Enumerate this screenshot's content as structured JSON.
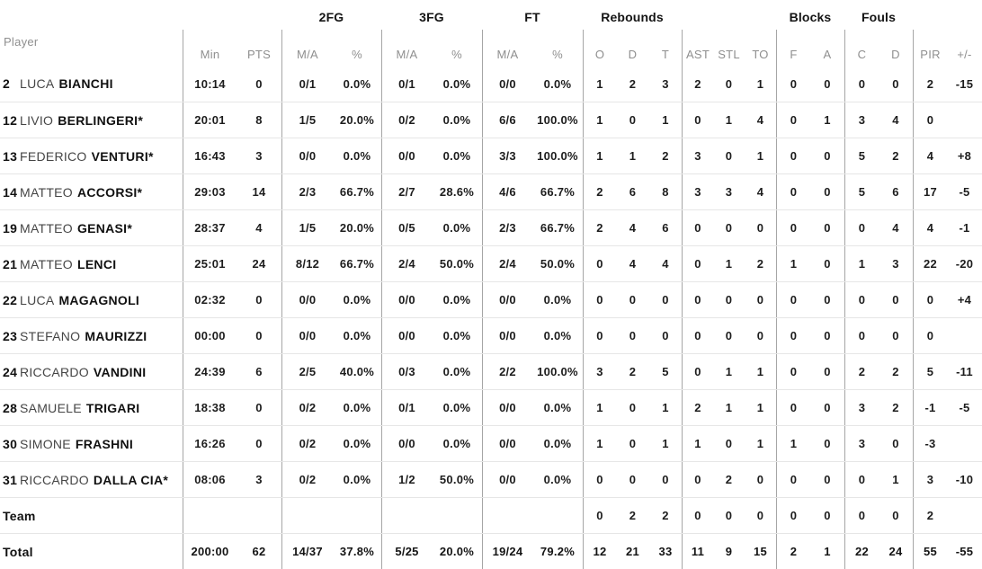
{
  "table": {
    "group_headers": [
      {
        "key": "fg2",
        "label": "2FG"
      },
      {
        "key": "fg3",
        "label": "3FG"
      },
      {
        "key": "ft",
        "label": "FT"
      },
      {
        "key": "rebounds",
        "label": "Rebounds"
      },
      {
        "key": "blocks",
        "label": "Blocks"
      },
      {
        "key": "fouls",
        "label": "Fouls"
      }
    ],
    "column_headers": [
      "Player",
      "Min",
      "PTS",
      "M/A",
      "%",
      "M/A",
      "%",
      "M/A",
      "%",
      "O",
      "D",
      "T",
      "AST",
      "STL",
      "TO",
      "F",
      "A",
      "C",
      "D",
      "PIR",
      "+/-"
    ],
    "rows": [
      {
        "number": "2",
        "first_name": "LUCA",
        "last_name": "BIANCHI",
        "stats": [
          "10:14",
          "0",
          "0/1",
          "0.0%",
          "0/1",
          "0.0%",
          "0/0",
          "0.0%",
          "1",
          "2",
          "3",
          "2",
          "0",
          "1",
          "0",
          "0",
          "0",
          "0",
          "2",
          "-15"
        ]
      },
      {
        "number": "12",
        "first_name": "LIVIO",
        "last_name": "BERLINGERI*",
        "stats": [
          "20:01",
          "8",
          "1/5",
          "20.0%",
          "0/2",
          "0.0%",
          "6/6",
          "100.0%",
          "1",
          "0",
          "1",
          "0",
          "1",
          "4",
          "0",
          "1",
          "3",
          "4",
          "0",
          ""
        ]
      },
      {
        "number": "13",
        "first_name": "FEDERICO",
        "last_name": "VENTURI*",
        "stats": [
          "16:43",
          "3",
          "0/0",
          "0.0%",
          "0/0",
          "0.0%",
          "3/3",
          "100.0%",
          "1",
          "1",
          "2",
          "3",
          "0",
          "1",
          "0",
          "0",
          "5",
          "2",
          "4",
          "+8"
        ]
      },
      {
        "number": "14",
        "first_name": "MATTEO",
        "last_name": "ACCORSI*",
        "stats": [
          "29:03",
          "14",
          "2/3",
          "66.7%",
          "2/7",
          "28.6%",
          "4/6",
          "66.7%",
          "2",
          "6",
          "8",
          "3",
          "3",
          "4",
          "0",
          "0",
          "5",
          "6",
          "17",
          "-5"
        ]
      },
      {
        "number": "19",
        "first_name": "MATTEO",
        "last_name": "GENASI*",
        "stats": [
          "28:37",
          "4",
          "1/5",
          "20.0%",
          "0/5",
          "0.0%",
          "2/3",
          "66.7%",
          "2",
          "4",
          "6",
          "0",
          "0",
          "0",
          "0",
          "0",
          "0",
          "4",
          "4",
          "-1"
        ]
      },
      {
        "number": "21",
        "first_name": "MATTEO",
        "last_name": "LENCI",
        "stats": [
          "25:01",
          "24",
          "8/12",
          "66.7%",
          "2/4",
          "50.0%",
          "2/4",
          "50.0%",
          "0",
          "4",
          "4",
          "0",
          "1",
          "2",
          "1",
          "0",
          "1",
          "3",
          "22",
          "-20"
        ]
      },
      {
        "number": "22",
        "first_name": "LUCA",
        "last_name": "MAGAGNOLI",
        "stats": [
          "02:32",
          "0",
          "0/0",
          "0.0%",
          "0/0",
          "0.0%",
          "0/0",
          "0.0%",
          "0",
          "0",
          "0",
          "0",
          "0",
          "0",
          "0",
          "0",
          "0",
          "0",
          "0",
          "+4"
        ]
      },
      {
        "number": "23",
        "first_name": "STEFANO",
        "last_name": "MAURIZZI",
        "stats": [
          "00:00",
          "0",
          "0/0",
          "0.0%",
          "0/0",
          "0.0%",
          "0/0",
          "0.0%",
          "0",
          "0",
          "0",
          "0",
          "0",
          "0",
          "0",
          "0",
          "0",
          "0",
          "0",
          ""
        ]
      },
      {
        "number": "24",
        "first_name": "RICCARDO",
        "last_name": "VANDINI",
        "stats": [
          "24:39",
          "6",
          "2/5",
          "40.0%",
          "0/3",
          "0.0%",
          "2/2",
          "100.0%",
          "3",
          "2",
          "5",
          "0",
          "1",
          "1",
          "0",
          "0",
          "2",
          "2",
          "5",
          "-11"
        ]
      },
      {
        "number": "28",
        "first_name": "SAMUELE",
        "last_name": "TRIGARI",
        "stats": [
          "18:38",
          "0",
          "0/2",
          "0.0%",
          "0/1",
          "0.0%",
          "0/0",
          "0.0%",
          "1",
          "0",
          "1",
          "2",
          "1",
          "1",
          "0",
          "0",
          "3",
          "2",
          "-1",
          "-5"
        ]
      },
      {
        "number": "30",
        "first_name": "SIMONE",
        "last_name": "FRASHNI",
        "stats": [
          "16:26",
          "0",
          "0/2",
          "0.0%",
          "0/0",
          "0.0%",
          "0/0",
          "0.0%",
          "1",
          "0",
          "1",
          "1",
          "0",
          "1",
          "1",
          "0",
          "3",
          "0",
          "-3",
          ""
        ]
      },
      {
        "number": "31",
        "first_name": "RICCARDO",
        "last_name": "DALLA CIA*",
        "stats": [
          "08:06",
          "3",
          "0/2",
          "0.0%",
          "1/2",
          "50.0%",
          "0/0",
          "0.0%",
          "0",
          "0",
          "0",
          "0",
          "2",
          "0",
          "0",
          "0",
          "0",
          "1",
          "3",
          "-10"
        ]
      },
      {
        "label": "Team",
        "stats": [
          "",
          "",
          "",
          "",
          "",
          "",
          "",
          "",
          "0",
          "2",
          "2",
          "0",
          "0",
          "0",
          "0",
          "0",
          "0",
          "0",
          "2",
          ""
        ]
      },
      {
        "label": "Total",
        "bold": true,
        "stats": [
          "200:00",
          "62",
          "14/37",
          "37.8%",
          "5/25",
          "20.0%",
          "19/24",
          "79.2%",
          "12",
          "21",
          "33",
          "11",
          "9",
          "15",
          "2",
          "1",
          "22",
          "24",
          "55",
          "-55"
        ]
      }
    ]
  }
}
